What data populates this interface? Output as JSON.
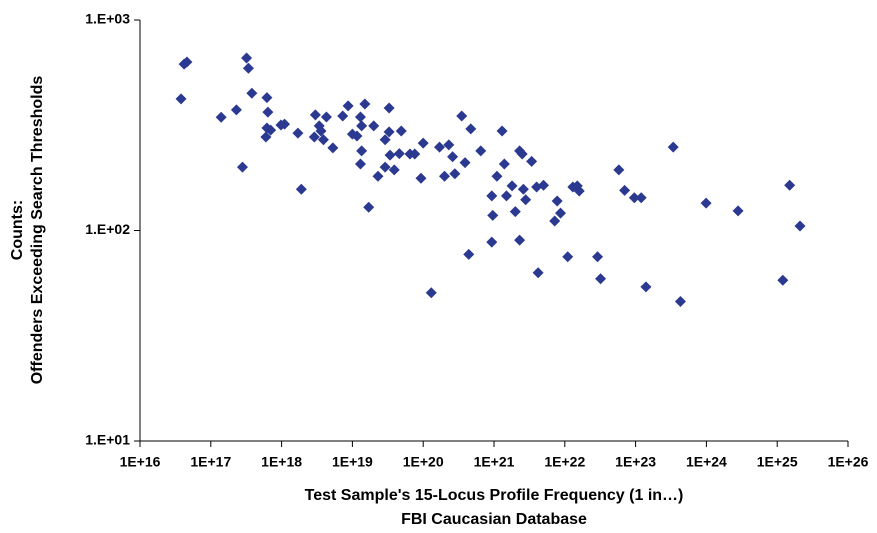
{
  "chart_data": {
    "type": "scatter",
    "xlabel": [
      "Test Sample's 15-Locus Profile Frequency (1 in…)",
      "FBI Caucasian Database"
    ],
    "ylabel": [
      "Counts:",
      "Offenders Exceeding Search Thresholds"
    ],
    "xscale": "log",
    "yscale": "log",
    "grid": false,
    "color": "#2b3990",
    "xlim": [
      1e+16,
      1e+26
    ],
    "xticks": [
      {
        "value": 1e+16,
        "label": "1E+16"
      },
      {
        "value": 1e+17,
        "label": "1E+17"
      },
      {
        "value": 1e+18,
        "label": "1E+18"
      },
      {
        "value": 1e+19,
        "label": "1E+19"
      },
      {
        "value": 1e+20,
        "label": "1E+20"
      },
      {
        "value": 1e+21,
        "label": "1E+21"
      },
      {
        "value": 1e+22,
        "label": "1E+22"
      },
      {
        "value": 1e+23,
        "label": "1E+23"
      },
      {
        "value": 1e+24,
        "label": "1E+24"
      },
      {
        "value": 1e+25,
        "label": "1E+25"
      },
      {
        "value": 1e+26,
        "label": "1E+26"
      }
    ],
    "ylim": [
      10,
      1000
    ],
    "yticks": [
      {
        "value": 10,
        "label": "1.E+01"
      },
      {
        "value": 100,
        "label": "1.E+02"
      },
      {
        "value": 1000,
        "label": "1.E+03"
      }
    ],
    "x": [
      3.8e+16,
      4.2e+16,
      4.6e+16,
      1.4e+17,
      2.3e+17,
      2.8e+17,
      3.2e+17,
      3.4e+17,
      3.8e+17,
      6.2e+17,
      6.2e+17,
      6e+17,
      6.4e+17,
      7e+17,
      9.8e+17,
      1.1e+18,
      1.7e+18,
      1.9e+18,
      2.9e+18,
      3e+18,
      3.4e+18,
      3.6e+18,
      3.9e+18,
      4.3e+18,
      5.3e+18,
      7.3e+18,
      8.7e+18,
      1e+19,
      1.16e+19,
      1.3e+19,
      1.35e+19,
      1.3e+19,
      1.35e+19,
      1.5e+19,
      1.7e+19,
      2e+19,
      2.3e+19,
      2.9e+19,
      2.9e+19,
      3.3e+19,
      3.3e+19,
      3.4e+19,
      3.9e+19,
      4.6e+19,
      4.9e+19,
      6.5e+19,
      7.6e+19,
      9.3e+19,
      1e+20,
      1.3e+20,
      1.7e+20,
      2e+20,
      2.3e+20,
      2.6e+20,
      2.8e+20,
      3.5e+20,
      3.9e+20,
      4.4e+20,
      4.7e+20,
      6.5e+20,
      9.3e+20,
      9.6e+20,
      9.3e+20,
      1.1e+21,
      1.3e+21,
      1.4e+21,
      1.5e+21,
      1.8e+21,
      2e+21,
      2.3e+21,
      2.3e+21,
      2.5e+21,
      2.6e+21,
      2.8e+21,
      3.4e+21,
      4e+21,
      4.2e+21,
      5e+21,
      7.2e+21,
      7.8e+21,
      8.7e+21,
      1.1e+22,
      1.3e+22,
      1.5e+22,
      1.6e+22,
      2.9e+22,
      3.2e+22,
      5.8e+22,
      7e+22,
      9.6e+22,
      1.2e+23,
      1.4e+23,
      3.4e+23,
      4.3e+23,
      9.9e+23,
      2.8e+24,
      1.2e+25,
      1.5e+25,
      2.1e+25
    ],
    "values": [
      422,
      617,
      632,
      345,
      374,
      200,
      660,
      590,
      449,
      428,
      307,
      278,
      365,
      300,
      317,
      320,
      290,
      157,
      278,
      354,
      314,
      297,
      270,
      346,
      247,
      350,
      391,
      287,
      281,
      346,
      314,
      207,
      239,
      399,
      129,
      314,
      181,
      200,
      270,
      382,
      294,
      228,
      194,
      232,
      297,
      231,
      231,
      177,
      260,
      50.6,
      249,
      181,
      255,
      224,
      186,
      350,
      210,
      77,
      304,
      239,
      146,
      118,
      88,
      181,
      297,
      207,
      146,
      163,
      123,
      90,
      239,
      231,
      157,
      140,
      213,
      161,
      63,
      164,
      111,
      138,
      121,
      75,
      161,
      163,
      154,
      75,
      59,
      194,
      155,
      143,
      143,
      54,
      249,
      46,
      135,
      124,
      58,
      164,
      105
    ]
  }
}
